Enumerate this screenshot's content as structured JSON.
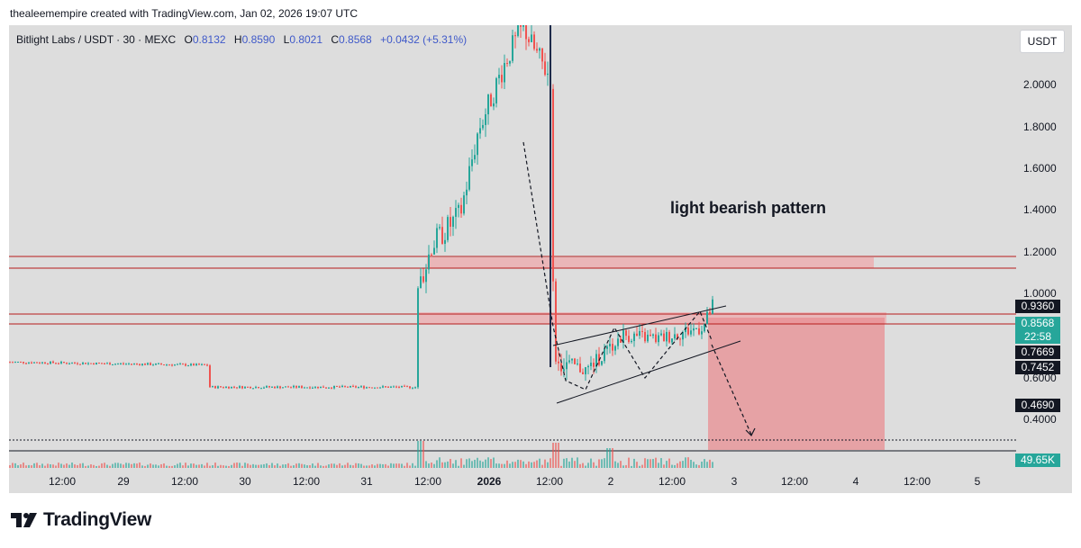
{
  "caption": "thealeemempire created with TradingView.com, Jan 02, 2026 19:07 UTC",
  "legend": {
    "symbol": "Bitlight Labs / USDT · 30 · MEXC",
    "o_label": "O",
    "o_value": "0.8132",
    "h_label": "H",
    "h_value": "0.8590",
    "l_label": "L",
    "l_value": "0.8021",
    "c_label": "C",
    "c_value": "0.8568",
    "change": "+0.0432 (+5.31%)"
  },
  "currency_button": "USDT",
  "annotation": "light bearish pattern",
  "colors": {
    "up": "#26a69a",
    "down": "#ef5350",
    "zone": "#e88d91",
    "line": "#b71c1c",
    "ink": "#131722"
  },
  "price_labels": [
    "2.0000",
    "1.8000",
    "1.6000",
    "1.4000",
    "1.2000",
    "1.0000",
    "0.6000",
    "0.4000"
  ],
  "price_tags": [
    {
      "text": "0.9360",
      "style": "dark"
    },
    {
      "text": "0.8568",
      "style": "green"
    },
    {
      "text": "22:58",
      "style": "green"
    },
    {
      "text": "0.7669",
      "style": "dark"
    },
    {
      "text": "0.7452",
      "style": "dark"
    },
    {
      "text": "0.4690",
      "style": "dark"
    }
  ],
  "volume_tag": "49.65K",
  "time_labels": [
    {
      "text": "12:00",
      "bold": false
    },
    {
      "text": "29",
      "bold": false
    },
    {
      "text": "12:00",
      "bold": false
    },
    {
      "text": "30",
      "bold": false
    },
    {
      "text": "12:00",
      "bold": false
    },
    {
      "text": "31",
      "bold": false
    },
    {
      "text": "12:00",
      "bold": false
    },
    {
      "text": "2026",
      "bold": true
    },
    {
      "text": "12:00",
      "bold": false
    },
    {
      "text": "2",
      "bold": false
    },
    {
      "text": "12:00",
      "bold": false
    },
    {
      "text": "3",
      "bold": false
    },
    {
      "text": "12:00",
      "bold": false
    },
    {
      "text": "4",
      "bold": false
    },
    {
      "text": "12:00",
      "bold": false
    },
    {
      "text": "5",
      "bold": false
    }
  ],
  "brand": {
    "logo_icon": "tradingview-logo-icon",
    "text": "TradingView"
  },
  "chart_data": {
    "type": "candlestick",
    "title": "Bitlight Labs / USDT · 30 · MEXC",
    "ohlc": {
      "open": 0.8132,
      "high": 0.859,
      "low": 0.8021,
      "close": 0.8568
    },
    "ylim": [
      0.3,
      2.2
    ],
    "series": [
      {
        "name": "price",
        "x": [
          "Dec 28 12:00",
          "Dec 29",
          "Dec 29 12:00",
          "Dec 30",
          "Dec 30 12:00",
          "Dec 31",
          "Dec 31 12:00",
          "Jan 1",
          "Jan 1 12:00",
          "Jan 2",
          "Jan 2 12:00",
          "Jan 2 16:00"
        ],
        "values": [
          0.59,
          0.58,
          0.57,
          0.46,
          0.47,
          0.47,
          1.1,
          1.6,
          2.0,
          0.6,
          0.74,
          0.86
        ]
      }
    ],
    "horizontal_levels": [
      1.18,
      1.12,
      0.936,
      0.895
    ],
    "zones": [
      {
        "from": 1.12,
        "to": 1.17
      },
      {
        "from": 0.89,
        "to": 0.95
      },
      {
        "from": 0.295,
        "to": 0.9
      }
    ],
    "annotation": "light bearish pattern",
    "grid": false
  }
}
